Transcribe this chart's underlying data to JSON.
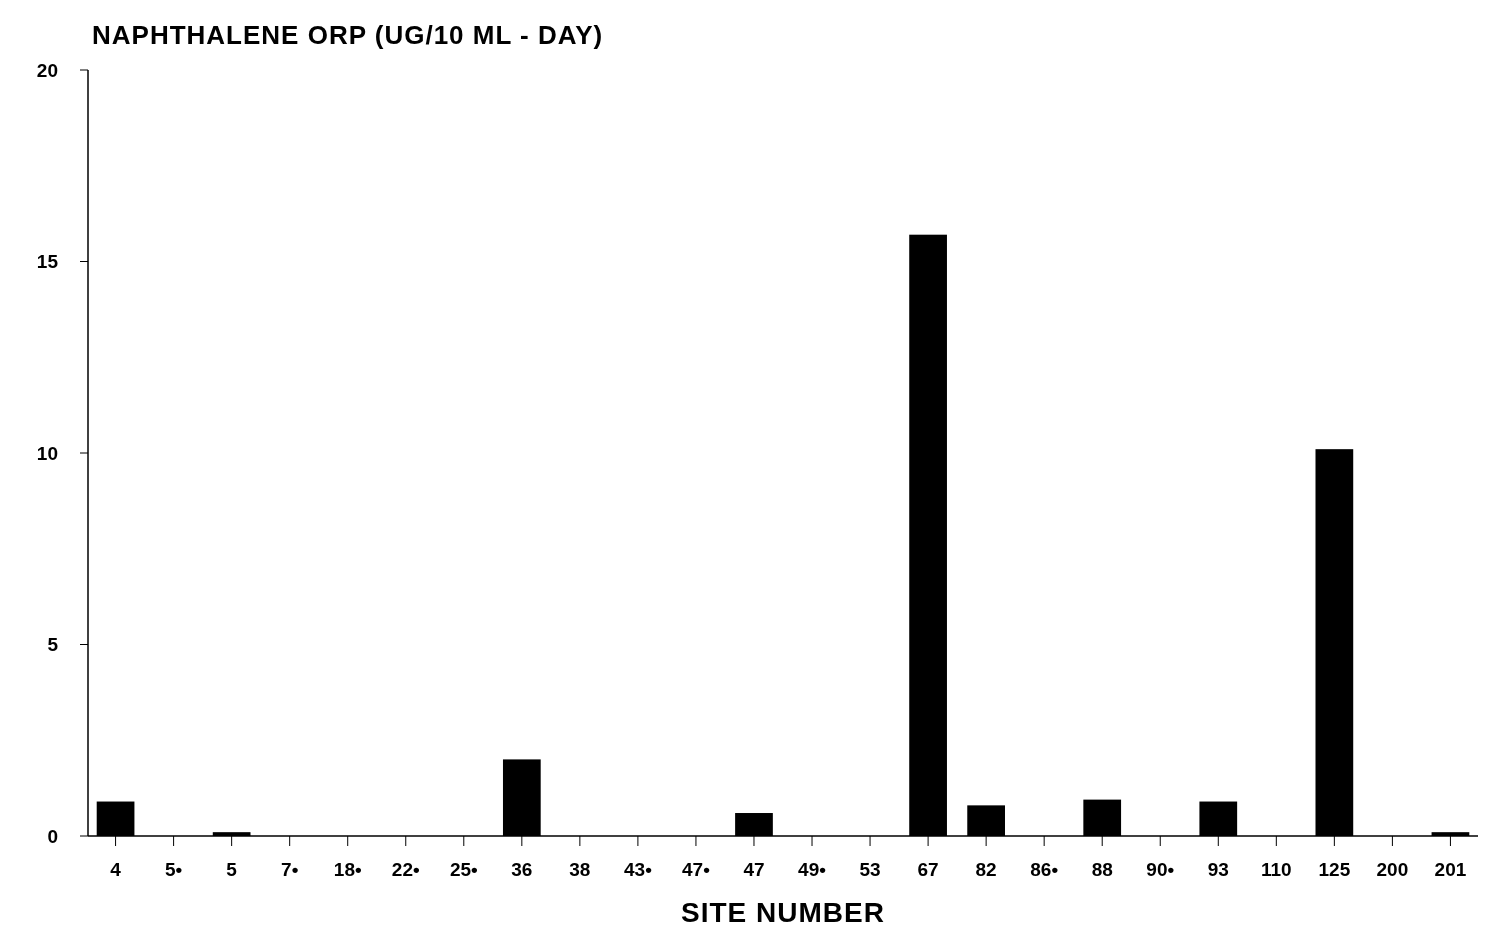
{
  "chart_data": {
    "type": "bar",
    "title": "NAPHTHALENE ORP (UG/10 ML - DAY)",
    "xlabel": "SITE NUMBER",
    "categories": [
      "4",
      "5•",
      "5",
      "7•",
      "18•",
      "22•",
      "25•",
      "36",
      "38",
      "43•",
      "47•",
      "47",
      "49•",
      "53",
      "67",
      "82",
      "86•",
      "88",
      "90•",
      "93",
      "110",
      "125",
      "200",
      "201"
    ],
    "values": [
      0.9,
      0,
      0.1,
      0,
      0,
      0,
      0,
      2.0,
      0,
      0,
      0,
      0.6,
      0,
      0,
      15.7,
      0.8,
      0,
      0.95,
      0,
      0.9,
      0,
      10.1,
      0,
      0.1
    ],
    "color": "#000000",
    "ylim": [
      0,
      20
    ],
    "yticks": [
      0,
      5,
      10,
      15,
      20
    ],
    "grid": false
  }
}
